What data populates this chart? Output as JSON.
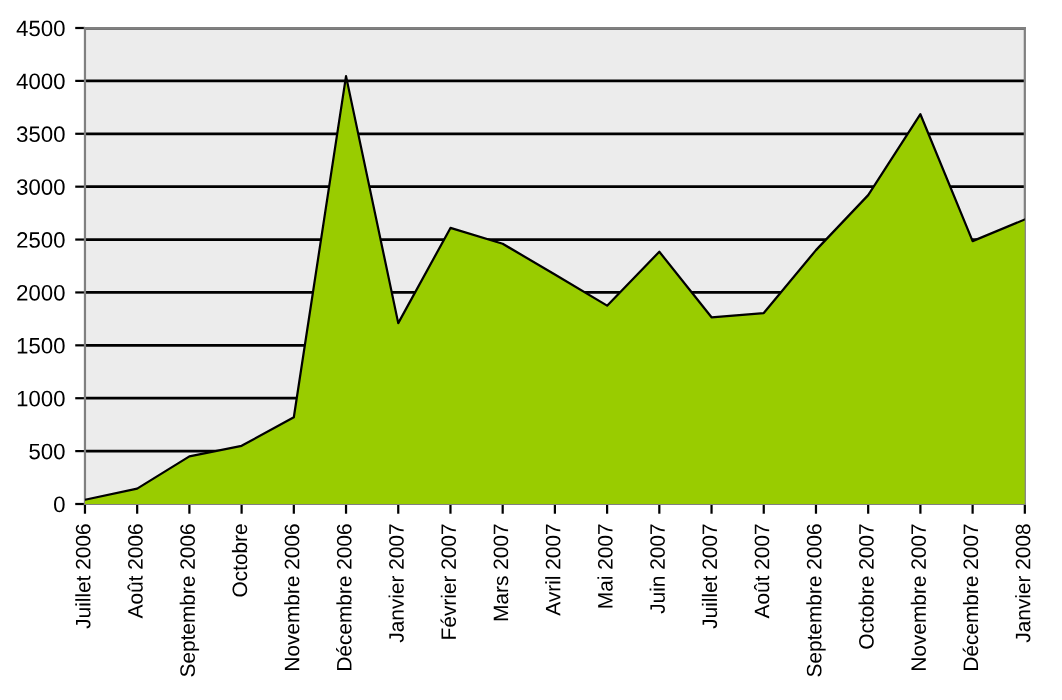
{
  "chart_data": {
    "type": "area",
    "categories": [
      "Juillet 2006",
      "Août 2006",
      "Septembre 2006",
      "Octobre",
      "Novembre 2006",
      "Décembre 2006",
      "Janvier 2007",
      "Février 2007",
      "Mars 2007",
      "Avril 2007",
      "Mai 2007",
      "Juin 2007",
      "Juillet 2007",
      "Août 2007",
      "Septembre 2006",
      "Octobre 2007",
      "Novembre 2007",
      "Décembre 2007",
      "Janvier 2008"
    ],
    "series": [
      {
        "color": "#99cc00",
        "values": [
          40,
          145,
          450,
          550,
          820,
          4045,
          1710,
          2610,
          2460,
          2170,
          1875,
          2385,
          1765,
          1805,
          2400,
          2920,
          3685,
          2485,
          2690
        ]
      }
    ],
    "ylim": [
      0,
      4500
    ],
    "yticks": [
      0,
      500,
      1000,
      1500,
      2000,
      2500,
      3000,
      3500,
      4000,
      4500
    ],
    "grid": "y"
  }
}
